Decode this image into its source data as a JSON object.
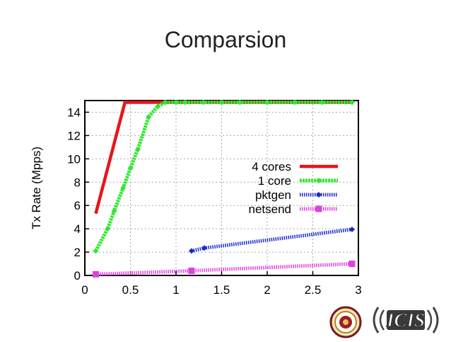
{
  "slide": {
    "title": "Comparsion"
  },
  "chart_data": {
    "type": "line",
    "title": "",
    "xlabel": "",
    "ylabel": "Tx Rate (Mpps)",
    "xlim": [
      0,
      3
    ],
    "ylim": [
      0,
      15
    ],
    "xticks": [
      0,
      0.5,
      1,
      1.5,
      2,
      2.5,
      3
    ],
    "xtick_labels": [
      "0",
      "0.5",
      "1",
      "1.5",
      "2",
      "2.5",
      "3"
    ],
    "yticks": [
      0,
      2,
      4,
      6,
      8,
      10,
      12,
      14
    ],
    "ytick_labels": [
      "0",
      "2",
      "4",
      "6",
      "8",
      "10",
      "12",
      "14"
    ],
    "grid": true,
    "legend_position": "center-right",
    "series": [
      {
        "name": "4 cores",
        "color": "#e8141c",
        "marker": "none",
        "x": [
          0.12,
          0.44,
          2.93
        ],
        "y": [
          5.3,
          14.85,
          14.85
        ]
      },
      {
        "name": "1 core",
        "color": "#2ee82e",
        "marker": "diamond",
        "x": [
          0.12,
          0.25,
          0.32,
          0.42,
          0.5,
          0.58,
          0.7,
          0.8,
          0.88,
          1.0,
          1.1,
          1.3,
          1.5,
          1.7,
          2.0,
          2.3,
          2.6,
          2.93
        ],
        "y": [
          2.1,
          4.0,
          5.5,
          7.5,
          9.2,
          10.8,
          13.6,
          14.5,
          14.85,
          14.85,
          14.85,
          14.85,
          14.85,
          14.85,
          14.85,
          14.85,
          14.85,
          14.85
        ]
      },
      {
        "name": "pktgen",
        "color": "#1a2acc",
        "marker": "diamond",
        "x": [
          1.17,
          1.31,
          2.93
        ],
        "y": [
          2.1,
          2.35,
          3.95
        ]
      },
      {
        "name": "netsend",
        "color": "#e040e0",
        "marker": "square",
        "x": [
          0.12,
          1.17,
          2.93
        ],
        "y": [
          0.1,
          0.4,
          1.0
        ]
      }
    ]
  },
  "logos": {
    "seal": "university-seal",
    "icis": "ICIS"
  }
}
